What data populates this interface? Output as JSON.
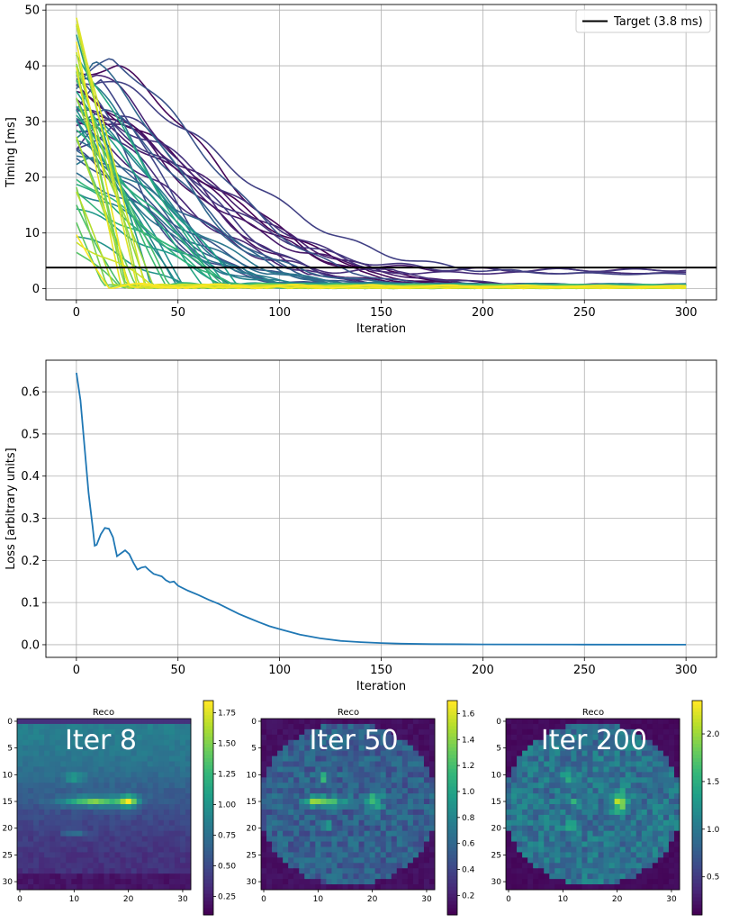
{
  "chart_data": [
    {
      "type": "line",
      "xlabel": "Iteration",
      "ylabel": "Timing [ms]",
      "xlim": [
        -15,
        315
      ],
      "ylim": [
        -2,
        51
      ],
      "xticks": [
        "0",
        "50",
        "100",
        "150",
        "200",
        "250",
        "300"
      ],
      "yticks": [
        "0",
        "10",
        "20",
        "30",
        "40",
        "50"
      ],
      "grid": true,
      "legend": {
        "position": "top-right",
        "entries": [
          "Target (3.8 ms)"
        ]
      },
      "target_line": {
        "label": "Target (3.8 ms)",
        "y": 3.8,
        "color": "#000000"
      },
      "series_count": 64,
      "colormap": "viridis",
      "series_description": "Per-pulse timing trajectories decaying from 0–49 ms toward ~0–4 ms over 300 iterations",
      "representative_series": [
        {
          "start": 41,
          "peak_iter": 0,
          "end_value": 4.3,
          "decay_iter": 150,
          "color_rank": 0.0
        },
        {
          "start": 32,
          "peak_iter": 18,
          "end_value": 4.0,
          "decay_iter": 145,
          "color_rank": 0.05
        },
        {
          "start": 36,
          "peak_iter": 18,
          "end_value": 3.5,
          "decay_iter": 140,
          "color_rank": 0.1
        },
        {
          "start": 28,
          "peak_iter": 10,
          "end_value": 2.6,
          "decay_iter": 125,
          "color_rank": 0.15
        },
        {
          "start": 40,
          "peak_iter": 0,
          "end_value": 0.3,
          "decay_iter": 110,
          "color_rank": 0.25
        },
        {
          "start": 30,
          "peak_iter": 0,
          "end_value": 0.3,
          "decay_iter": 95,
          "color_rank": 0.35
        },
        {
          "start": 34,
          "peak_iter": 0,
          "end_value": 0.4,
          "decay_iter": 75,
          "color_rank": 0.45
        },
        {
          "start": 45,
          "peak_iter": 0,
          "end_value": 0.3,
          "decay_iter": 55,
          "color_rank": 0.6
        },
        {
          "start": 47,
          "peak_iter": 0,
          "end_value": 0.2,
          "decay_iter": 35,
          "color_rank": 0.8
        },
        {
          "start": 49,
          "peak_iter": 0,
          "end_value": 0.1,
          "decay_iter": 20,
          "color_rank": 1.0
        }
      ]
    },
    {
      "type": "line",
      "xlabel": "Iteration",
      "ylabel": "Loss [arbitrary units]",
      "xlim": [
        -15,
        315
      ],
      "ylim": [
        -0.03,
        0.675
      ],
      "xticks": [
        "0",
        "50",
        "100",
        "150",
        "200",
        "250",
        "300"
      ],
      "yticks": [
        "0.0",
        "0.1",
        "0.2",
        "0.3",
        "0.4",
        "0.5",
        "0.6"
      ],
      "grid": true,
      "color": "#1f77b4",
      "x": [
        0,
        2,
        4,
        6,
        8,
        9,
        10,
        12,
        14,
        16,
        18,
        20,
        22,
        24,
        26,
        28,
        30,
        32,
        34,
        36,
        38,
        40,
        42,
        44,
        46,
        48,
        50,
        55,
        60,
        65,
        70,
        75,
        80,
        85,
        90,
        95,
        100,
        110,
        120,
        130,
        140,
        150,
        160,
        175,
        200,
        250,
        300
      ],
      "y": [
        0.645,
        0.58,
        0.47,
        0.36,
        0.28,
        0.235,
        0.237,
        0.262,
        0.277,
        0.275,
        0.255,
        0.21,
        0.217,
        0.224,
        0.215,
        0.195,
        0.178,
        0.183,
        0.185,
        0.176,
        0.168,
        0.165,
        0.162,
        0.153,
        0.148,
        0.15,
        0.14,
        0.128,
        0.118,
        0.107,
        0.097,
        0.085,
        0.073,
        0.063,
        0.053,
        0.044,
        0.037,
        0.024,
        0.015,
        0.009,
        0.006,
        0.004,
        0.0025,
        0.0015,
        0.0008,
        0.0003,
        0.0002
      ]
    },
    {
      "type": "heatmap",
      "title": "Reco",
      "annotation": "Iter 8",
      "colormap": "viridis",
      "vmin": 0.1,
      "vmax": 1.85,
      "xticks": [
        "0",
        "10",
        "20",
        "30"
      ],
      "yticks": [
        "0",
        "5",
        "10",
        "15",
        "20",
        "25",
        "30"
      ],
      "colorbar_ticks": [
        "0.25",
        "0.50",
        "0.75",
        "1.00",
        "1.25",
        "1.50",
        "1.75"
      ],
      "colorbar_values": [
        0.25,
        0.5,
        0.75,
        1.0,
        1.25,
        1.5,
        1.75
      ],
      "grid_size": 32
    },
    {
      "type": "heatmap",
      "title": "Reco",
      "annotation": "Iter 50",
      "colormap": "viridis",
      "vmin": 0.05,
      "vmax": 1.7,
      "xticks": [
        "0",
        "10",
        "20",
        "30"
      ],
      "yticks": [
        "0",
        "5",
        "10",
        "15",
        "20",
        "25",
        "30"
      ],
      "colorbar_ticks": [
        "0.2",
        "0.4",
        "0.6",
        "0.8",
        "1.0",
        "1.2",
        "1.4",
        "1.6"
      ],
      "colorbar_values": [
        0.2,
        0.4,
        0.6,
        0.8,
        1.0,
        1.2,
        1.4,
        1.6
      ],
      "grid_size": 32
    },
    {
      "type": "heatmap",
      "title": "Reco",
      "annotation": "Iter 200",
      "colormap": "viridis",
      "vmin": 0.1,
      "vmax": 2.35,
      "xticks": [
        "0",
        "10",
        "20",
        "30"
      ],
      "yticks": [
        "0",
        "5",
        "10",
        "15",
        "20",
        "25",
        "30"
      ],
      "colorbar_ticks": [
        "0.5",
        "1.0",
        "1.5",
        "2.0"
      ],
      "colorbar_values": [
        0.5,
        1.0,
        1.5,
        2.0
      ],
      "grid_size": 32
    }
  ]
}
